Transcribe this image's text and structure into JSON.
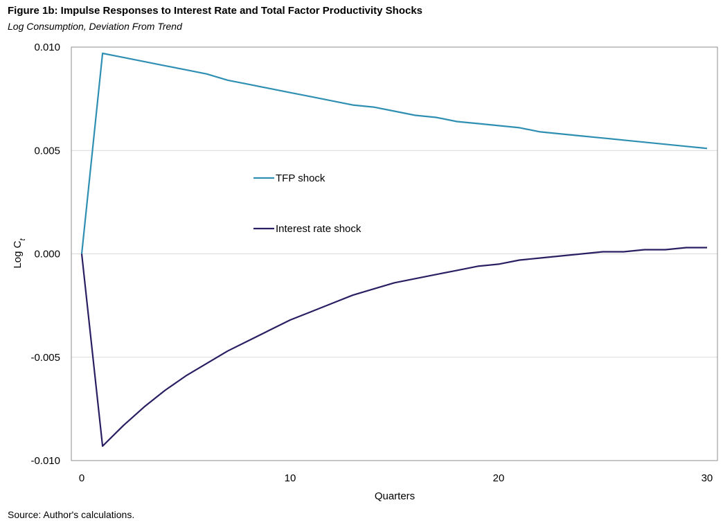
{
  "header": {
    "title": "Figure 1b: Impulse Responses to Interest Rate and Total Factor Productivity Shocks",
    "subtitle": "Log Consumption, Deviation From Trend"
  },
  "footer": {
    "source": "Source: Author's calculations."
  },
  "chart_data": {
    "type": "line",
    "title": "Figure 1b: Impulse Responses to Interest Rate and Total Factor Productivity Shocks",
    "subtitle": "Log Consumption, Deviation From Trend",
    "xlabel": "Quarters",
    "ylabel_main": "Log C",
    "ylabel_sub": "t",
    "xlim": [
      -0.5,
      30.5
    ],
    "ylim": [
      -0.01,
      0.01
    ],
    "x_ticks": [
      0,
      10,
      20,
      30
    ],
    "y_ticks": [
      0.01,
      0.005,
      0.0,
      -0.005,
      -0.01
    ],
    "y_tick_labels": [
      "0.010",
      "0.005",
      "0.000",
      "-0.005",
      "-0.010"
    ],
    "grid": "horizontal",
    "legend_placement": "center-left inside plot",
    "x": [
      0,
      1,
      2,
      3,
      4,
      5,
      6,
      7,
      8,
      9,
      10,
      11,
      12,
      13,
      14,
      15,
      16,
      17,
      18,
      19,
      20,
      21,
      22,
      23,
      24,
      25,
      26,
      27,
      28,
      29,
      30
    ],
    "series": [
      {
        "name": "TFP shock",
        "color": "#2e8fb2",
        "values": [
          0.0,
          0.0097,
          0.0095,
          0.0093,
          0.0091,
          0.0089,
          0.0087,
          0.0084,
          0.0082,
          0.008,
          0.0078,
          0.0076,
          0.0074,
          0.0072,
          0.0071,
          0.0069,
          0.0067,
          0.0066,
          0.0064,
          0.0063,
          0.0062,
          0.0061,
          0.0059,
          0.0058,
          0.0057,
          0.0056,
          0.0055,
          0.0054,
          0.0053,
          0.0052,
          0.0051
        ]
      },
      {
        "name": "Interest rate shock",
        "color": "#2a1e63",
        "values": [
          0.0,
          -0.0093,
          -0.0083,
          -0.0074,
          -0.0066,
          -0.0059,
          -0.0053,
          -0.0047,
          -0.0042,
          -0.0037,
          -0.0032,
          -0.0028,
          -0.0024,
          -0.002,
          -0.0017,
          -0.0014,
          -0.0012,
          -0.001,
          -0.0008,
          -0.0006,
          -0.0005,
          -0.0003,
          -0.0002,
          -0.0001,
          0.0,
          0.0001,
          0.0001,
          0.0002,
          0.0002,
          0.0003,
          0.0003
        ]
      }
    ]
  }
}
